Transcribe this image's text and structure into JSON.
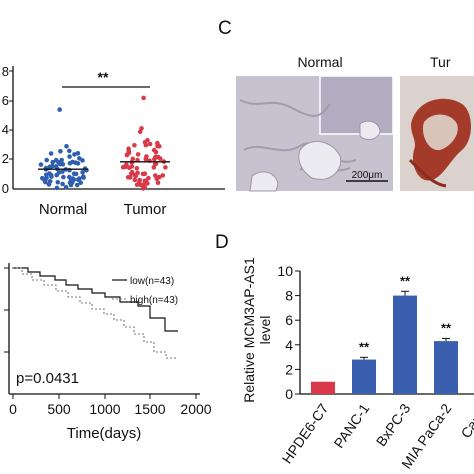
{
  "panel_labels": {
    "c": "C",
    "d": "D"
  },
  "scatter": {
    "categories": [
      "Normal",
      "Tumor"
    ],
    "y_ticks": [
      "8",
      "6",
      "4",
      "2",
      "0"
    ],
    "significance": "**",
    "colors": {
      "normal": "#2f5fae",
      "tumor": "#d93a4a"
    },
    "normal_mean": 1.35,
    "tumor_mean": 1.85
  },
  "ihc": {
    "labels": [
      "Normal",
      "Tur"
    ],
    "scale_bar": "200μm"
  },
  "survival": {
    "x_ticks": [
      "0",
      "500",
      "1000",
      "1500",
      "2000"
    ],
    "xlabel": "Time(days)",
    "pvalue": "p=0.0431",
    "legend": [
      "low(n=43)",
      "high(n=43)"
    ]
  },
  "chart_data": {
    "type": "bar",
    "categories": [
      "HPDE6-C7",
      "PANC-1",
      "BxPC-3",
      "MIA PaCa-2",
      "Capar"
    ],
    "values": [
      1.0,
      2.8,
      8.0,
      4.3,
      null
    ],
    "errors": [
      0.0,
      0.18,
      0.35,
      0.22,
      null
    ],
    "significance": [
      "",
      "**",
      "**",
      "**",
      ""
    ],
    "y_ticks": [
      "10",
      "8",
      "6",
      "4",
      "2",
      "0"
    ],
    "ylabel_lines": [
      "Relative MCM3AP-AS1",
      "level"
    ],
    "ylim": [
      0,
      10
    ],
    "colors": {
      "control": "#d93a4a",
      "cells": "#3a5fae"
    }
  }
}
